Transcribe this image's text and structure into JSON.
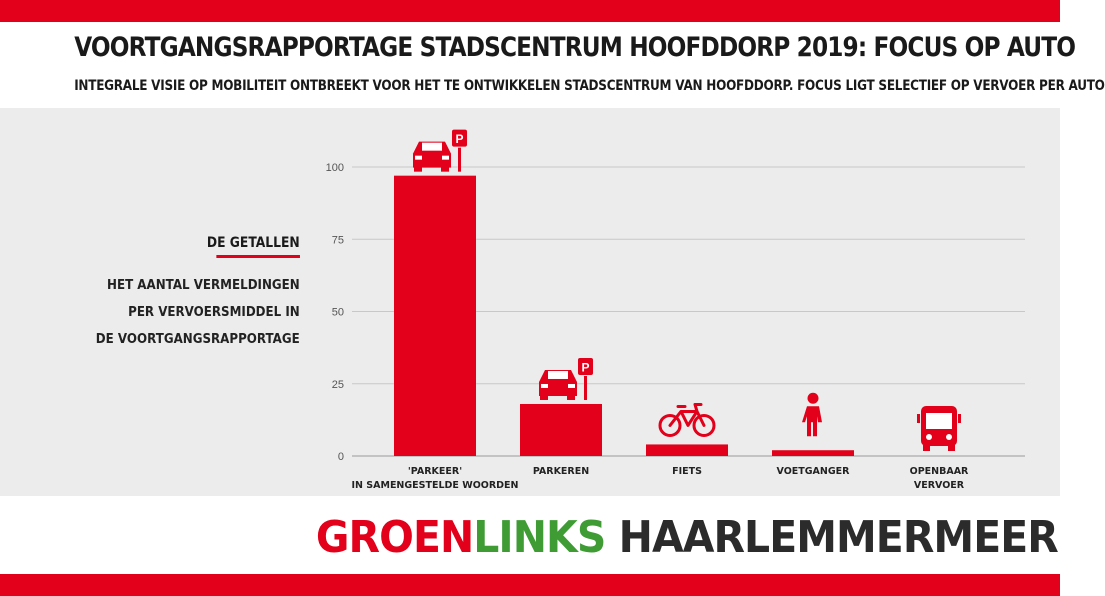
{
  "title": "VOORTGANGSRAPPORTAGE STADSCENTRUM HOOFDDORP 2019: FOCUS OP AUTO",
  "subtitle": "INTEGRALE VISIE OP MOBILITEIT ONTBREEKT VOOR HET TE ONTWIKKELEN STADSCENTRUM VAN HOOFDDORP. FOCUS LIGT SELECTIEF OP VERVOER PER AUTO",
  "side_note": {
    "heading": "DE GETALLEN",
    "lines": [
      "HET AANTAL VERMELDINGEN",
      "PER VERVOERSMIDDEL IN",
      "DE VOORTGANGSRAPPORTAGE"
    ]
  },
  "brand": {
    "part1": "GROEN",
    "part2": "LINKS",
    "part3": " HAARLEMMERMEER"
  },
  "colors": {
    "accent": "#e2001a",
    "brand_green": "#3f9c35",
    "brand_dark": "#2b2b2b",
    "panel": "#ececec",
    "grid": "#c8c8c8"
  },
  "chart_data": {
    "type": "bar",
    "categories": [
      [
        "'PARKEER'",
        "IN SAMENGESTELDE WOORDEN"
      ],
      [
        "PARKEREN"
      ],
      [
        "FIETS"
      ],
      [
        "VOETGANGER"
      ],
      [
        "OPENBAAR",
        "VERVOER"
      ]
    ],
    "values": [
      97,
      18,
      4,
      2,
      0
    ],
    "icons": [
      "car-parking-icon",
      "car-parking-icon",
      "bicycle-icon",
      "pedestrian-icon",
      "bus-icon"
    ],
    "ylim": [
      0,
      100
    ],
    "yticks": [
      0,
      25,
      50,
      75,
      100
    ],
    "grid": true,
    "legend": "none"
  }
}
